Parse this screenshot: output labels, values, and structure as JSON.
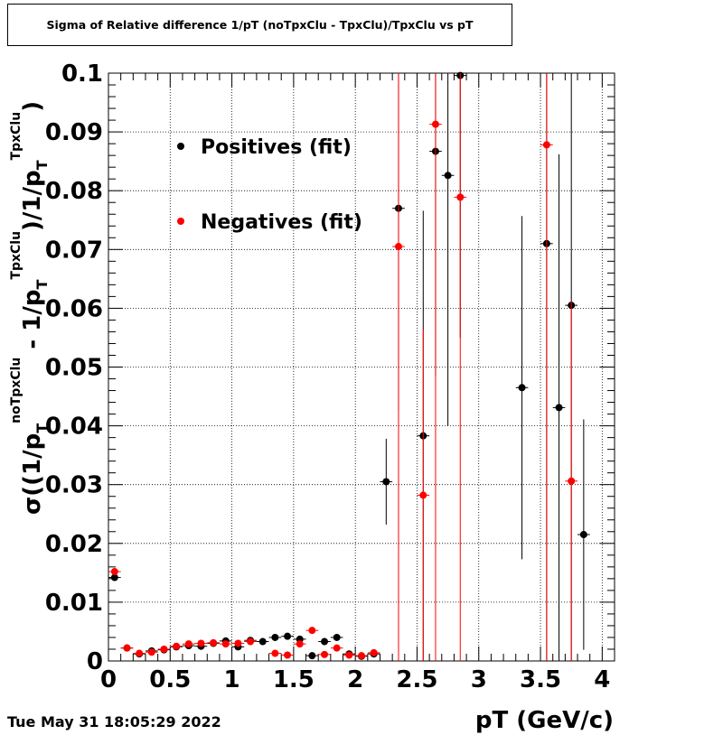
{
  "title": "Sigma of Relative difference 1/pT (noTpxClu - TpxClu)/TpxClu vs pT",
  "timestamp": "Tue May 31 18:05:29 2022",
  "chart_data": {
    "type": "scatter",
    "xlabel": "pT (GeV/c)",
    "ylabel": {
      "prefix": "σ((1/p",
      "sub1": "T",
      "sup1": "noTpxClu",
      "mid": " - 1/p",
      "sub2": "T",
      "sup2": "TpxClu",
      "mid2": ")/1/p",
      "sub3": "T",
      "sup3": "TpxClu",
      "suffix": ")"
    },
    "xlim": [
      0,
      4.1
    ],
    "ylim": [
      0,
      0.1
    ],
    "xticks": [
      "0",
      "0.5",
      "1",
      "1.5",
      "2",
      "2.5",
      "3",
      "3.5",
      "4"
    ],
    "yticks": [
      "0",
      "0.01",
      "0.02",
      "0.03",
      "0.04",
      "0.05",
      "0.06",
      "0.07",
      "0.08",
      "0.09",
      "0.1"
    ],
    "grid": true,
    "legend_position": "top-left",
    "series": [
      {
        "name": "Positives (fit)",
        "color": "#000000",
        "points": [
          {
            "x": 0.05,
            "y": 0.0142,
            "err": 0.0006
          },
          {
            "x": 0.15,
            "y": 0.0022,
            "err": 0.0002
          },
          {
            "x": 0.25,
            "y": 0.0012,
            "err": 0.0002
          },
          {
            "x": 0.35,
            "y": 0.0017,
            "err": 0.0002
          },
          {
            "x": 0.45,
            "y": 0.0019,
            "err": 0.0002
          },
          {
            "x": 0.55,
            "y": 0.0024,
            "err": 0.0002
          },
          {
            "x": 0.65,
            "y": 0.0026,
            "err": 0.0002
          },
          {
            "x": 0.75,
            "y": 0.0025,
            "err": 0.0002
          },
          {
            "x": 0.85,
            "y": 0.003,
            "err": 0.0002
          },
          {
            "x": 0.95,
            "y": 0.0034,
            "err": 0.0002
          },
          {
            "x": 1.05,
            "y": 0.0024,
            "err": 0.0002
          },
          {
            "x": 1.15,
            "y": 0.0035,
            "err": 0.0002
          },
          {
            "x": 1.25,
            "y": 0.0033,
            "err": 0.0002
          },
          {
            "x": 1.35,
            "y": 0.004,
            "err": 0.0003
          },
          {
            "x": 1.45,
            "y": 0.0042,
            "err": 0.0003
          },
          {
            "x": 1.55,
            "y": 0.0037,
            "err": 0.0003
          },
          {
            "x": 1.65,
            "y": 0.0009,
            "err": 0.0003
          },
          {
            "x": 1.75,
            "y": 0.0033,
            "err": 0.0003
          },
          {
            "x": 1.85,
            "y": 0.004,
            "err": 0.0003
          },
          {
            "x": 1.95,
            "y": 0.0012,
            "err": 0.0003
          },
          {
            "x": 2.05,
            "y": 0.0008,
            "err": 0.0003
          },
          {
            "x": 2.15,
            "y": 0.0012,
            "err": 0.0003
          },
          {
            "x": 2.25,
            "y": 0.0305,
            "err": 0.0073
          },
          {
            "x": 2.35,
            "y": 0.077,
            "err": 0.0343
          },
          {
            "x": 2.55,
            "y": 0.0383,
            "err": 0.0383
          },
          {
            "x": 2.65,
            "y": 0.0867,
            "err": 0.0382
          },
          {
            "x": 2.75,
            "y": 0.0826,
            "err": 0.0426
          },
          {
            "x": 2.85,
            "y": 0.0996,
            "err": 0.0446
          },
          {
            "x": 3.35,
            "y": 0.0465,
            "err": 0.0292
          },
          {
            "x": 3.55,
            "y": 0.071,
            "err": 0.071
          },
          {
            "x": 3.65,
            "y": 0.0431,
            "err": 0.0431
          },
          {
            "x": 3.75,
            "y": 0.0605,
            "err": 0.0605
          },
          {
            "x": 3.85,
            "y": 0.0215,
            "err": 0.0196
          }
        ]
      },
      {
        "name": "Negatives (fit)",
        "color": "#ff0000",
        "points": [
          {
            "x": 0.05,
            "y": 0.0152,
            "err": 0.0006
          },
          {
            "x": 0.15,
            "y": 0.0022,
            "err": 0.0002
          },
          {
            "x": 0.25,
            "y": 0.0013,
            "err": 0.0002
          },
          {
            "x": 0.35,
            "y": 0.0015,
            "err": 0.0002
          },
          {
            "x": 0.45,
            "y": 0.002,
            "err": 0.0002
          },
          {
            "x": 0.55,
            "y": 0.0025,
            "err": 0.0002
          },
          {
            "x": 0.65,
            "y": 0.0029,
            "err": 0.0002
          },
          {
            "x": 0.75,
            "y": 0.003,
            "err": 0.0002
          },
          {
            "x": 0.85,
            "y": 0.0031,
            "err": 0.0002
          },
          {
            "x": 0.95,
            "y": 0.0029,
            "err": 0.0002
          },
          {
            "x": 1.05,
            "y": 0.003,
            "err": 0.0002
          },
          {
            "x": 1.15,
            "y": 0.0033,
            "err": 0.0002
          },
          {
            "x": 1.35,
            "y": 0.0013,
            "err": 0.0003
          },
          {
            "x": 1.45,
            "y": 0.001,
            "err": 0.0003
          },
          {
            "x": 1.55,
            "y": 0.0029,
            "err": 0.0003
          },
          {
            "x": 1.65,
            "y": 0.0052,
            "err": 0.0003
          },
          {
            "x": 1.75,
            "y": 0.0011,
            "err": 0.0003
          },
          {
            "x": 1.85,
            "y": 0.0022,
            "err": 0.0003
          },
          {
            "x": 1.95,
            "y": 0.001,
            "err": 0.0003
          },
          {
            "x": 2.05,
            "y": 0.0009,
            "err": 0.0003
          },
          {
            "x": 2.15,
            "y": 0.0014,
            "err": 0.0003
          },
          {
            "x": 2.35,
            "y": 0.0705,
            "err": 0.0705
          },
          {
            "x": 2.55,
            "y": 0.0282,
            "err": 0.0282
          },
          {
            "x": 2.65,
            "y": 0.0913,
            "err": 0.0913
          },
          {
            "x": 2.85,
            "y": 0.0789,
            "err": 0.0789
          },
          {
            "x": 3.55,
            "y": 0.0878,
            "err": 0.0878
          },
          {
            "x": 3.75,
            "y": 0.0306,
            "err": 0.0306
          }
        ]
      }
    ]
  }
}
